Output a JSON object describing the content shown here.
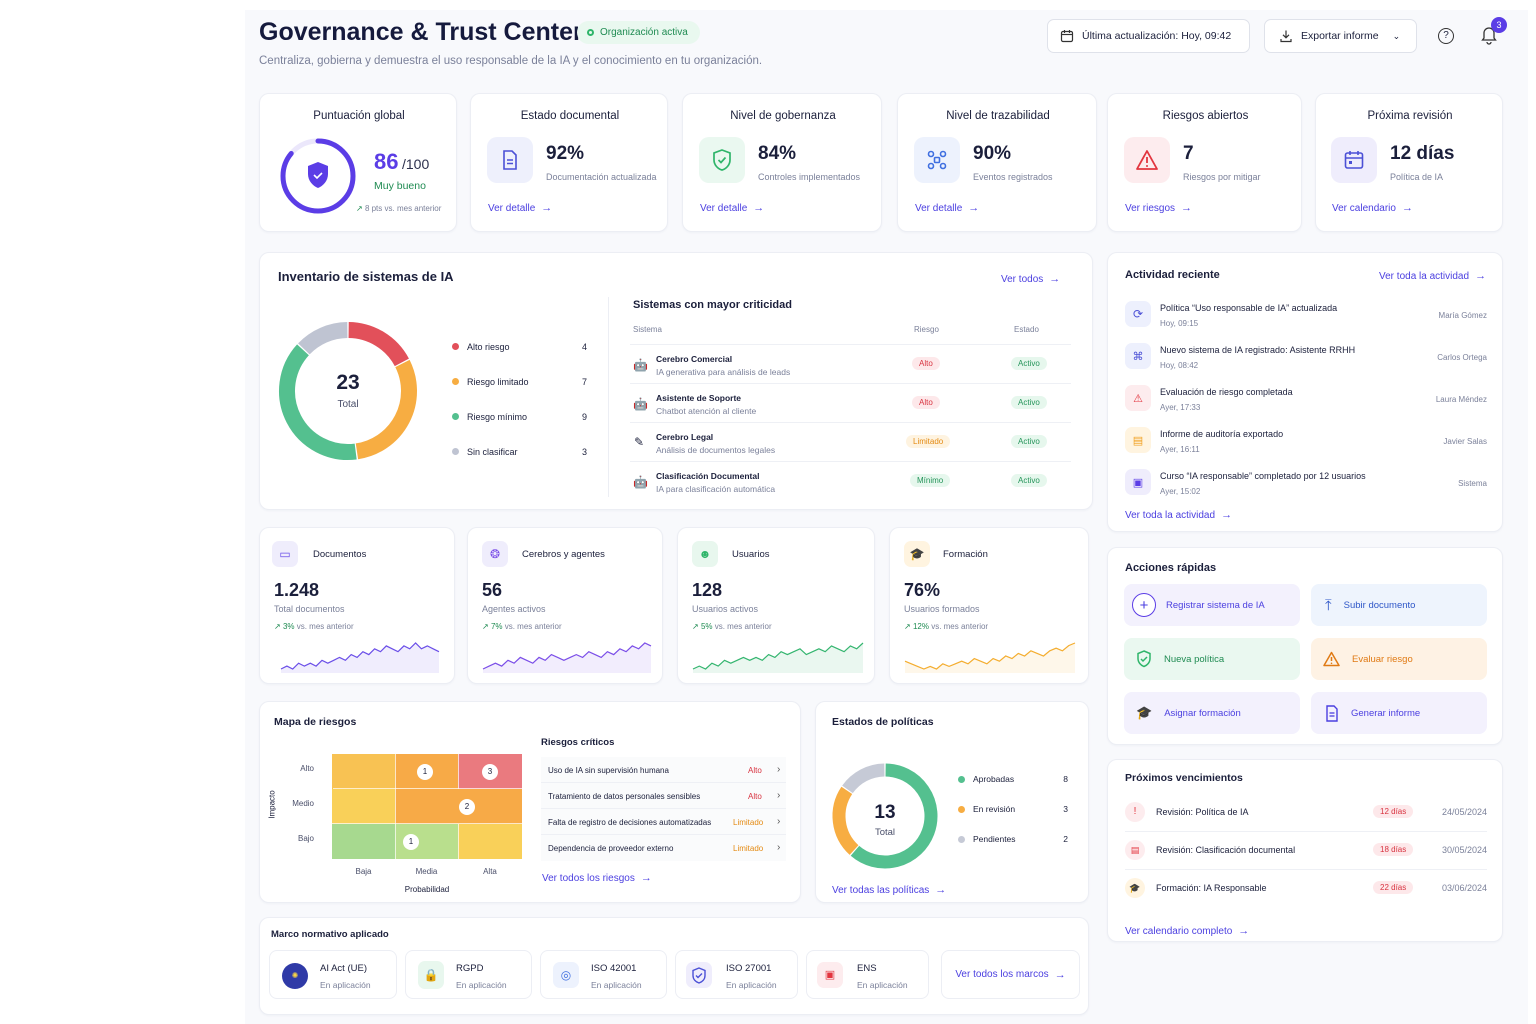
{
  "colors": {
    "accent": "#5b3de6",
    "green": "#3fc38a",
    "orange": "#f7ad42",
    "red": "#e2505a",
    "gray": "#c6cad6",
    "link": "#4b3fe0"
  },
  "header": {
    "title": "Governance & Trust Center",
    "status_badge": "Organización activa",
    "subtitle": "Centraliza, gobierna y demuestra el uso responsable de la IA y el conocimiento en tu organización.",
    "last_update": "Última actualización: Hoy, 09:42",
    "export_label": "Exportar informe",
    "notifications_count": "3"
  },
  "kpis": {
    "score": {
      "title": "Puntuación global",
      "value": "86",
      "max": "/100",
      "score_fraction": 0.86,
      "rating": "Muy bueno",
      "trend": "8 pts vs. mes anterior"
    },
    "docs": {
      "title": "Estado documental",
      "value": "92%",
      "caption": "Documentación actualizada",
      "link": "Ver detalle"
    },
    "gov": {
      "title": "Nivel de gobernanza",
      "value": "84%",
      "caption": "Controles implementados",
      "link": "Ver detalle"
    },
    "trace": {
      "title": "Nivel de trazabilidad",
      "value": "90%",
      "caption": "Eventos registrados",
      "link": "Ver detalle"
    },
    "risks": {
      "title": "Riesgos abiertos",
      "value": "7",
      "caption": "Riesgos por mitigar",
      "link": "Ver riesgos"
    },
    "review": {
      "title": "Próxima revisión",
      "value": "12 días",
      "caption": "Política de IA",
      "link": "Ver calendario"
    }
  },
  "inventory": {
    "title": "Inventario de sistemas de IA",
    "link": "Ver todos",
    "total": "23",
    "total_label": "Total",
    "segments": [
      {
        "label": "Alto riesgo",
        "count": "4",
        "value": 4,
        "color": "#e2505a"
      },
      {
        "label": "Riesgo limitado",
        "count": "7",
        "value": 7,
        "color": "#f7ad42"
      },
      {
        "label": "Riesgo mínimo",
        "count": "9",
        "value": 9,
        "color": "#54c08f"
      },
      {
        "label": "Sin clasificar",
        "count": "3",
        "value": 3,
        "color": "#bfc4d2"
      }
    ],
    "critical_title": "Sistemas con mayor criticidad",
    "columns": [
      "Sistema",
      "Riesgo",
      "Estado"
    ],
    "rows": [
      {
        "name": "Cerebro Comercial",
        "desc": "IA generativa para análisis de leads",
        "risk": "Alto",
        "status": "Activo",
        "icon": "robot-icon"
      },
      {
        "name": "Asistente de Soporte",
        "desc": "Chatbot atención al cliente",
        "risk": "Alto",
        "status": "Activo",
        "icon": "robot-icon"
      },
      {
        "name": "Cerebro Legal",
        "desc": "Análisis de documentos legales",
        "risk": "Limitado",
        "status": "Activo",
        "icon": "pen-icon"
      },
      {
        "name": "Clasificación Documental",
        "desc": "IA para clasificación automática",
        "risk": "Mínimo",
        "status": "Activo",
        "icon": "robot-icon"
      }
    ]
  },
  "activity": {
    "title": "Actividad reciente",
    "link_top": "Ver toda la actividad",
    "link_bottom": "Ver toda la actividad",
    "items": [
      {
        "text": "Política “Uso responsable de IA” actualizada",
        "time": "Hoy, 09:15",
        "user": "María Gómez",
        "icon": "refresh-icon"
      },
      {
        "text": "Nuevo sistema de IA registrado: Asistente RRHH",
        "time": "Hoy, 08:42",
        "user": "Carlos Ortega",
        "icon": "nodes-icon"
      },
      {
        "text": "Evaluación de riesgo completada",
        "time": "Ayer, 17:33",
        "user": "Laura Méndez",
        "icon": "warning-icon"
      },
      {
        "text": "Informe de auditoría exportado",
        "time": "Ayer, 16:11",
        "user": "Javier Salas",
        "icon": "document-icon"
      },
      {
        "text": "Curso “IA responsable” completado por 12 usuarios",
        "time": "Ayer, 15:02",
        "user": "Sistema",
        "icon": "course-icon"
      }
    ]
  },
  "stats": [
    {
      "title": "Documentos",
      "value": "1.248",
      "caption": "Total documentos",
      "trend": "3%",
      "trend_suffix": "vs. mes anterior",
      "color": "#6a4ee8",
      "icon": "folder-icon",
      "spark": [
        5,
        6,
        5,
        7,
        6,
        7,
        6,
        8,
        7,
        8,
        9,
        8,
        10,
        9,
        11,
        10,
        12,
        11,
        13,
        12,
        11,
        13,
        12,
        14,
        12,
        13,
        12,
        11
      ]
    },
    {
      "title": "Cerebros y agentes",
      "value": "56",
      "caption": "Agentes activos",
      "trend": "7%",
      "trend_suffix": "vs. mes anterior",
      "color": "#7b4ee8",
      "icon": "brain-icon",
      "spark": [
        5,
        6,
        7,
        6,
        8,
        7,
        9,
        8,
        7,
        9,
        8,
        10,
        9,
        8,
        9,
        10,
        9,
        11,
        10,
        9,
        11,
        10,
        12,
        11,
        13,
        12,
        14,
        13
      ]
    },
    {
      "title": "Usuarios",
      "value": "128",
      "caption": "Usuarios activos",
      "trend": "5%",
      "trend_suffix": "vs. mes anterior",
      "color": "#34b56f",
      "icon": "users-icon",
      "spark": [
        5,
        6,
        5,
        7,
        6,
        8,
        7,
        8,
        9,
        8,
        9,
        8,
        10,
        9,
        11,
        10,
        11,
        12,
        10,
        11,
        12,
        11,
        13,
        12,
        11,
        13,
        12,
        14
      ]
    },
    {
      "title": "Formación",
      "value": "76%",
      "caption": "Usuarios formados",
      "trend": "12%",
      "trend_suffix": "vs. mes anterior",
      "color": "#f4ad2f",
      "icon": "cap-icon",
      "spark": [
        8,
        7,
        6,
        5,
        6,
        5,
        7,
        6,
        7,
        8,
        7,
        9,
        8,
        7,
        9,
        8,
        10,
        9,
        11,
        10,
        12,
        11,
        10,
        12,
        13,
        12,
        14,
        15
      ]
    }
  ],
  "risk_map": {
    "title": "Mapa de riesgos",
    "y_axis": "Impacto",
    "x_axis": "Probabilidad",
    "rows": [
      "Alto",
      "Medio",
      "Bajo"
    ],
    "cols": [
      "Baja",
      "Media",
      "Alta"
    ],
    "bubbles": {
      "alto_media": "1",
      "alto_alta": "3",
      "medio_media": "2",
      "bajo_media": "1"
    },
    "critical_title": "Riesgos críticos",
    "critical": [
      {
        "text": "Uso de IA sin supervisión humana",
        "level": "Alto"
      },
      {
        "text": "Tratamiento de datos personales sensibles",
        "level": "Alto"
      },
      {
        "text": "Falta de registro de decisiones automatizadas",
        "level": "Limitado"
      },
      {
        "text": "Dependencia de proveedor externo",
        "level": "Limitado"
      }
    ],
    "link": "Ver todos los riesgos"
  },
  "policies": {
    "title": "Estados de políticas",
    "total": "13",
    "total_label": "Total",
    "segments": [
      {
        "label": "Aprobadas",
        "count": "8",
        "value": 8,
        "color": "#54c08f"
      },
      {
        "label": "En revisión",
        "count": "3",
        "value": 3,
        "color": "#f7ad42"
      },
      {
        "label": "Pendientes",
        "count": "2",
        "value": 2,
        "color": "#c6cad6"
      }
    ],
    "link": "Ver todas las políticas"
  },
  "quick_actions": {
    "title": "Acciones rápidas",
    "items": [
      {
        "label": "Registrar sistema de IA",
        "icon": "plus-icon"
      },
      {
        "label": "Subir documento",
        "icon": "upload-icon"
      },
      {
        "label": "Nueva política",
        "icon": "shield-icon"
      },
      {
        "label": "Evaluar riesgo",
        "icon": "warning-icon"
      },
      {
        "label": "Asignar formación",
        "icon": "cap-icon"
      },
      {
        "label": "Generar informe",
        "icon": "document-icon"
      }
    ]
  },
  "deadlines": {
    "title": "Próximos vencimientos",
    "items": [
      {
        "text": "Revisión: Política de IA",
        "days": "12 días",
        "date": "24/05/2024",
        "icon": "alert-circle-icon"
      },
      {
        "text": "Revisión: Clasificación documental",
        "days": "18 días",
        "date": "30/05/2024",
        "icon": "document-icon"
      },
      {
        "text": "Formación: IA Responsable",
        "days": "22 días",
        "date": "03/06/2024",
        "icon": "cap-icon"
      }
    ],
    "link": "Ver calendario completo"
  },
  "frameworks": {
    "title": "Marco normativo aplicado",
    "items": [
      {
        "name": "AI Act (UE)",
        "status": "En aplicación",
        "icon": "eu-flag-icon"
      },
      {
        "name": "RGPD",
        "status": "En aplicación",
        "icon": "lock-icon"
      },
      {
        "name": "ISO 42001",
        "status": "En aplicación",
        "icon": "iso-icon"
      },
      {
        "name": "ISO 27001",
        "status": "En aplicación",
        "icon": "shield-icon"
      },
      {
        "name": "ENS",
        "status": "En aplicación",
        "icon": "ens-icon"
      }
    ],
    "link": "Ver todos los marcos"
  }
}
